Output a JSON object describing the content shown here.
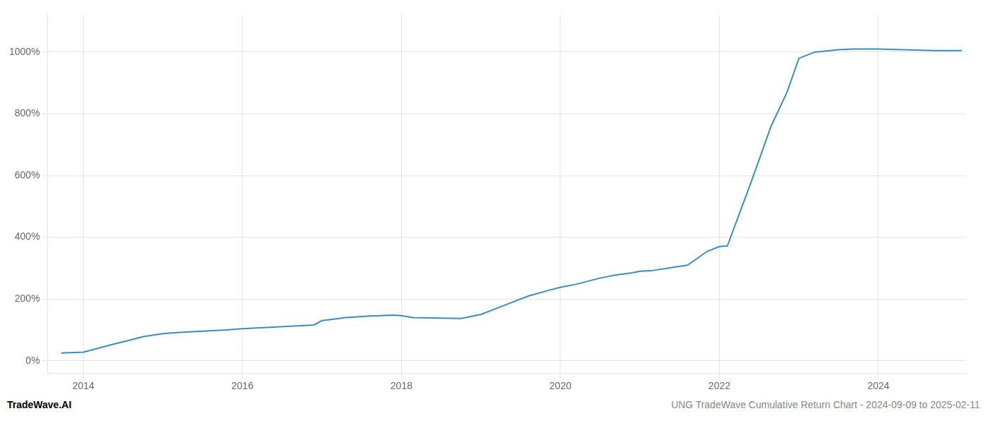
{
  "chart_data": {
    "type": "line",
    "title": "UNG TradeWave Cumulative Return Chart - 2024-09-09 to 2025-02-11",
    "annotations": [
      "TradeWave.AI"
    ],
    "x": [
      2013.72,
      2014.0,
      2014.15,
      2014.35,
      2014.6,
      2014.75,
      2015.0,
      2015.2,
      2015.5,
      2015.8,
      2016.0,
      2016.3,
      2016.6,
      2016.9,
      2017.0,
      2017.3,
      2017.6,
      2017.9,
      2018.0,
      2018.15,
      2018.5,
      2018.75,
      2019.0,
      2019.3,
      2019.6,
      2019.85,
      2020.0,
      2020.2,
      2020.5,
      2020.7,
      2020.9,
      2021.0,
      2021.15,
      2021.4,
      2021.6,
      2021.85,
      2022.0,
      2022.1,
      2022.4,
      2022.65,
      2022.85,
      2023.0,
      2023.2,
      2023.5,
      2023.7,
      2024.0,
      2024.3,
      2024.7,
      2025.05
    ],
    "values": [
      25,
      28,
      38,
      52,
      68,
      78,
      88,
      92,
      96,
      100,
      104,
      108,
      112,
      116,
      130,
      140,
      145,
      148,
      146,
      140,
      138,
      137,
      150,
      180,
      210,
      228,
      238,
      248,
      268,
      278,
      285,
      290,
      292,
      302,
      310,
      355,
      370,
      372,
      580,
      760,
      870,
      980,
      1000,
      1008,
      1010,
      1010,
      1008,
      1005,
      1005
    ],
    "color": "#3a8dbf",
    "xlim": [
      2013.55,
      2025.1
    ],
    "xticks": [
      2014,
      2016,
      2018,
      2020,
      2022,
      2024
    ],
    "ylim": [
      -40,
      1120
    ],
    "yticks": [
      {
        "value": 0,
        "label": "0%"
      },
      {
        "value": 200,
        "label": "200%"
      },
      {
        "value": 400,
        "label": "400%"
      },
      {
        "value": 600,
        "label": "600%"
      },
      {
        "value": 800,
        "label": "800%"
      },
      {
        "value": 1000,
        "label": "1000%"
      }
    ],
    "grid": true
  }
}
